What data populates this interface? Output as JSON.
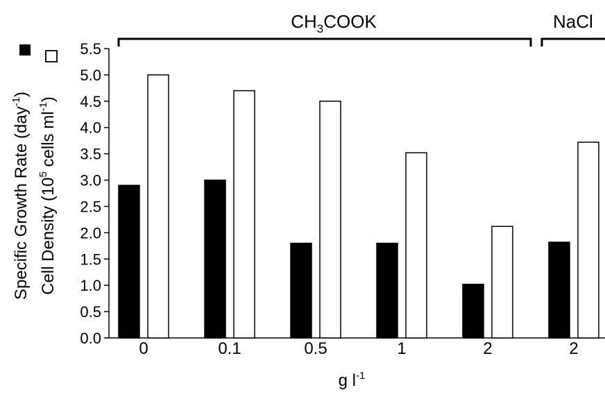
{
  "chart_data": {
    "type": "bar",
    "categories": [
      "0",
      "0.1",
      "0.5",
      "1",
      "2",
      "2"
    ],
    "groups": [
      {
        "label": "CH3COOK",
        "categories": [
          "0",
          "0.1",
          "0.5",
          "1",
          "2"
        ]
      },
      {
        "label": "NaCl",
        "categories": [
          "2"
        ]
      }
    ],
    "series": [
      {
        "legend_label": "Specific Growth Rate (day-1)",
        "fill": "#000000",
        "values": [
          2.9,
          3.0,
          1.8,
          1.8,
          1.02,
          1.82
        ]
      },
      {
        "legend_label": "Cell Density (105 cells ml-1)",
        "fill": "#ffffff",
        "values": [
          5.0,
          4.7,
          4.5,
          3.52,
          2.12,
          3.72
        ]
      }
    ],
    "xlabel": "g l-1",
    "ylabel_lines": [
      "Specific Growth Rate (day-1)",
      "Cell Density (105 cells ml-1)"
    ],
    "ylim": [
      0.0,
      5.5
    ],
    "yticks": [
      "0.0",
      "0.5",
      "1.0",
      "1.5",
      "2.0",
      "2.5",
      "3.0",
      "3.5",
      "4.0",
      "4.5",
      "5.0",
      "5.5"
    ],
    "grid": false
  },
  "labels": {
    "group1_prefix": "CH",
    "group1_sub": "3",
    "group1_suffix": "COOK",
    "group2": "NaCl",
    "ylabel1_main": "Specific Growth Rate (day",
    "ylabel1_sup": "-1",
    "ylabel1_close": ")",
    "ylabel2_main": "Cell Density (10",
    "ylabel2_sup1": "5",
    "ylabel2_mid": " cells ml",
    "ylabel2_sup2": "-1",
    "ylabel2_close": ")",
    "xlabel_main": "g l",
    "xlabel_sup": "-1"
  }
}
